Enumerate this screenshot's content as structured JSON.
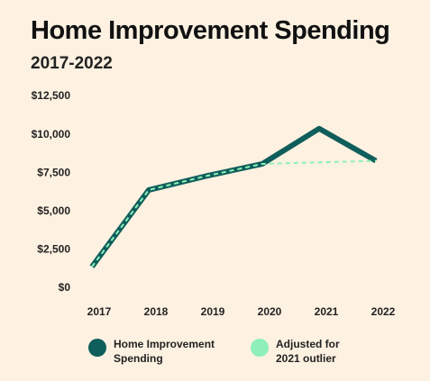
{
  "chart_data": {
    "type": "line",
    "title": "Home Improvement Spending",
    "subtitle": "2017-2022",
    "categories": [
      "2017",
      "2018",
      "2019",
      "2020",
      "2021",
      "2022"
    ],
    "series": [
      {
        "name": "Home Improvement Spending",
        "color": "#0f5e5b",
        "values": [
          1400,
          6400,
          7300,
          8100,
          10400,
          8300
        ]
      },
      {
        "name": "Adjusted for 2021 outlier",
        "color": "#8ef0b8",
        "values": [
          1400,
          6400,
          7300,
          8100,
          8200,
          8300
        ]
      }
    ],
    "ylim": [
      0,
      12500
    ],
    "yticks": [
      {
        "value": 0,
        "label": "$0"
      },
      {
        "value": 2500,
        "label": "$2,500"
      },
      {
        "value": 5000,
        "label": "$5,000"
      },
      {
        "value": 7500,
        "label": "$7,500"
      },
      {
        "value": 10000,
        "label": "$10,000"
      },
      {
        "value": 12500,
        "label": "$12,500"
      }
    ],
    "grid": false
  }
}
